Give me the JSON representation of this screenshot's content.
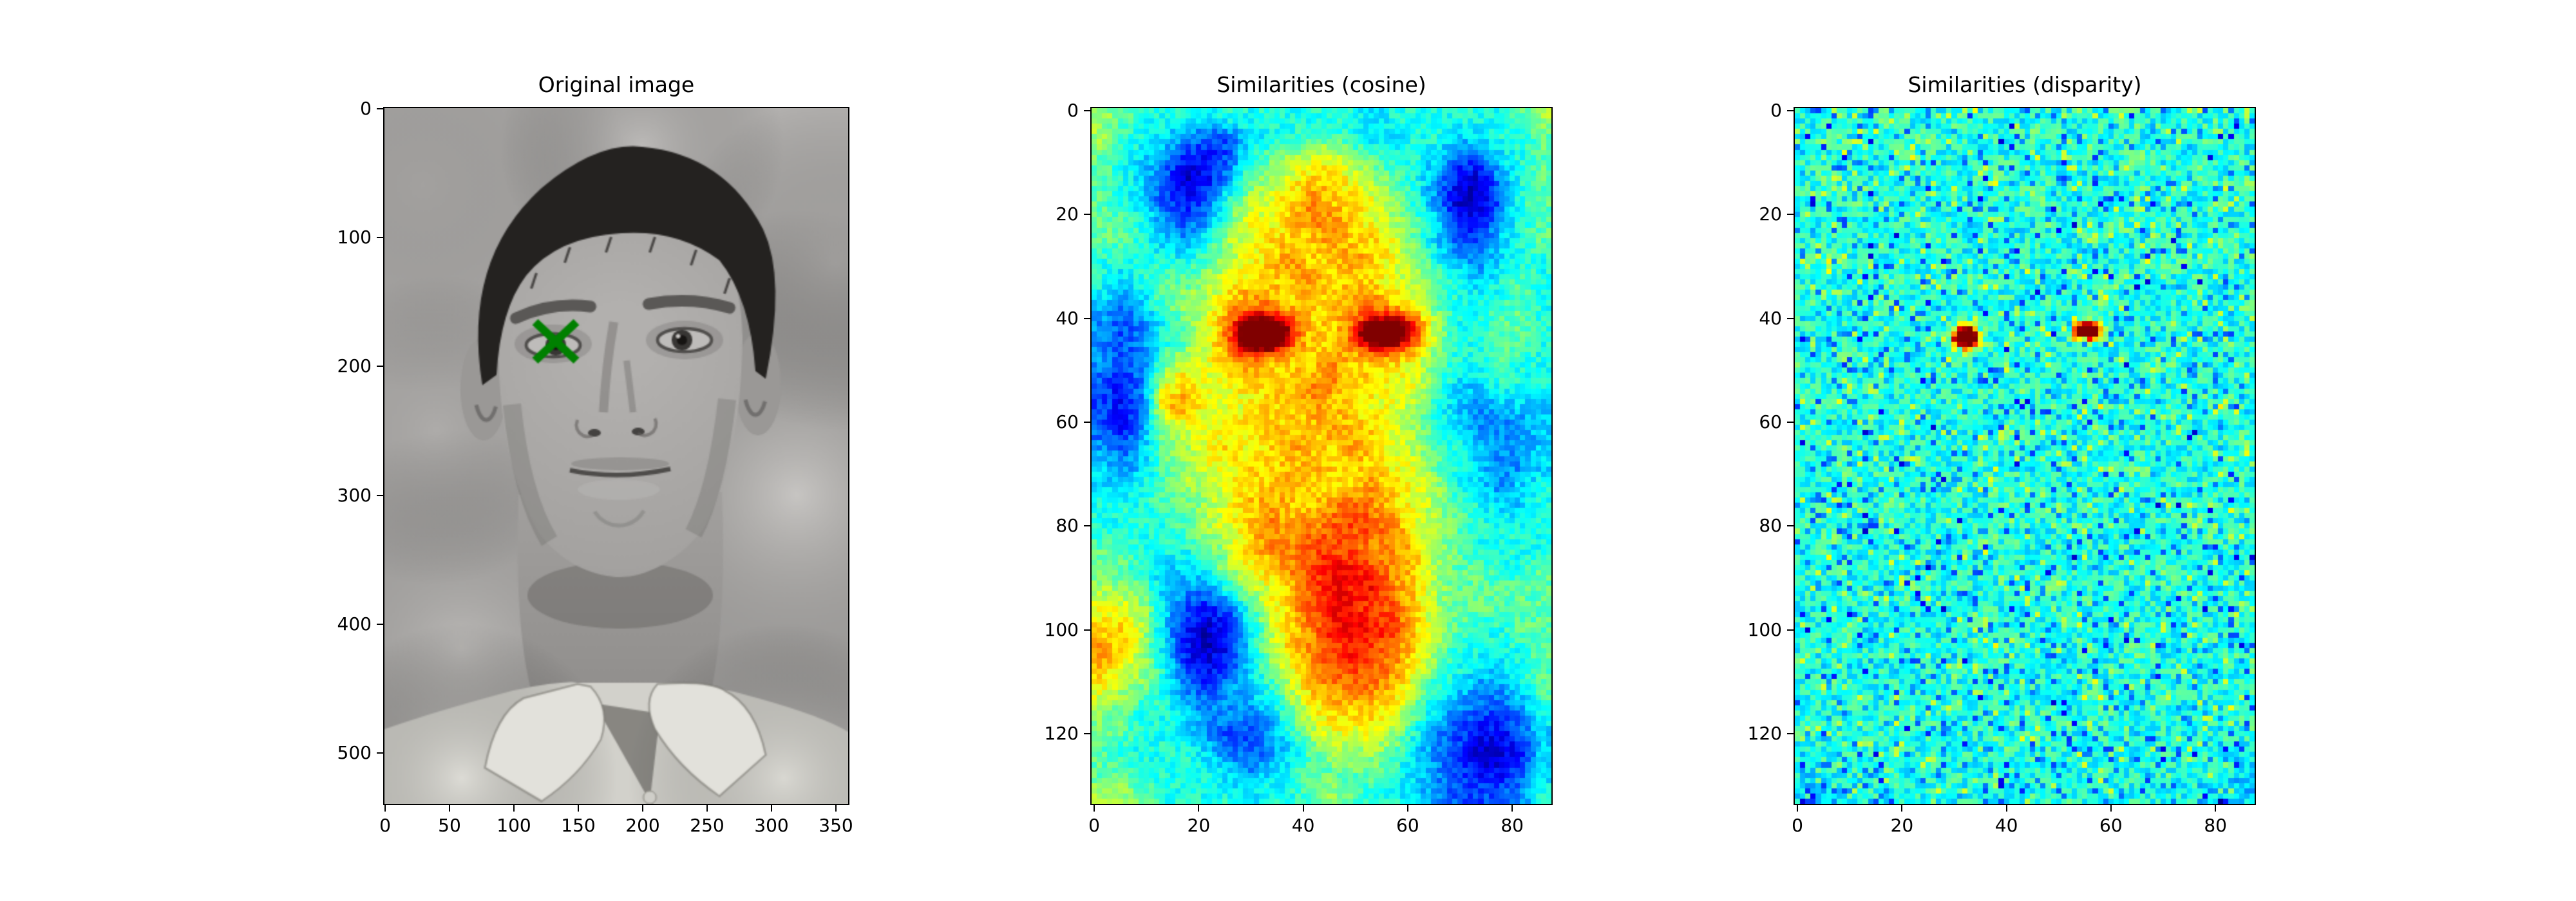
{
  "figure_background": "#ffffff",
  "chart_data": [
    {
      "id": "original",
      "type": "image",
      "title": "Original image",
      "x_ticks": [
        0,
        50,
        100,
        150,
        200,
        250,
        300,
        350
      ],
      "y_ticks": [
        0,
        100,
        200,
        300,
        400,
        500
      ],
      "x_range": [
        -0.5,
        359.5
      ],
      "y_range": [
        -0.5,
        539.5
      ],
      "image": {
        "cols": 360,
        "rows": 540,
        "description": "grayscale frontal portrait of a man with short dark hair wearing a light open-collared shirt on a light gray mottled background"
      },
      "marker": {
        "shape": "x",
        "x": 133,
        "y": 181,
        "color": "#008000",
        "half_width": 16,
        "half_height": 15,
        "line_width": 6.5
      },
      "palette": {
        "background": "#b4b2b0",
        "skin": "#a6a4a2",
        "hair": "#242220",
        "shirt": "#d2d1cb",
        "shirt_light": "#e2e1db"
      }
    },
    {
      "id": "cosine",
      "type": "heatmap",
      "title": "Similarities (cosine)",
      "colormap": "jet",
      "x_ticks": [
        0,
        20,
        40,
        60,
        80
      ],
      "y_ticks": [
        0,
        20,
        40,
        60,
        80,
        100,
        120
      ],
      "x_range": [
        -0.5,
        87.5
      ],
      "y_range": [
        -0.5,
        133.5
      ],
      "data_cols": 88,
      "data_rows": 134,
      "grid_cols": 22,
      "grid_rows": 34,
      "value_scale": 15,
      "noise_amp": 0.055,
      "seed": 3.1,
      "hotspots": [
        {
          "x": 32.5,
          "y": 43.2,
          "sx": 3.0,
          "sy": 1.8,
          "amp": 0.28
        },
        {
          "x": 55.2,
          "y": 42.8,
          "sx": 3.0,
          "sy": 1.6,
          "amp": 0.24
        }
      ],
      "grid": [
        "8766656666666566666678",
        "8665433566776556655667",
        "7654223678998766533567",
        "7653124789aa9876421467",
        "765323689abaa986411367",
        "776434799abba987522467",
        "77654689aaabaa97533567",
        "66666789abaaba98654566",
        "6567789aaabaaa98765676",
        "545788abbaaabba9766676",
        "434679beecaabdec866776",
        "434679bedbaabddb866776",
        "434799abaaabaaa9766766",
        "3249a99aaabbaa99755666",
        "324ab999aabaa998654555",
        "3248999aaaabaa98654445",
        "435789a9abaaba98765445",
        "5457899aaabaaa99765445",
        "5567889aabaaaba9865456",
        "6667789abaabcba9876556",
        "6666789abbbcccb9876666",
        "7766678abbcccbba876666",
        "77655689abcddcba877667",
        "887544689acdddba877777",
        "998532369acddcca877777",
        "aa8521258abdddca876677",
        "ba8521258abcdcba866667",
        "a986323579bcccb9765567",
        "9876434568abbba8654457",
        "87665444579aaa97543346",
        "7766543346899986432235",
        "7666654345788875431125",
        "7766665456777765432235",
        "8876666566787665433346"
      ]
    },
    {
      "id": "disparity",
      "type": "heatmap",
      "title": "Similarities (disparity)",
      "colormap": "jet",
      "x_ticks": [
        0,
        20,
        40,
        60,
        80
      ],
      "y_ticks": [
        0,
        20,
        40,
        60,
        80,
        100,
        120
      ],
      "x_range": [
        -0.5,
        87.5
      ],
      "y_range": [
        -0.5,
        133.5
      ],
      "data_cols": 88,
      "data_rows": 134,
      "grid_cols": 22,
      "grid_rows": 34,
      "value_scale": 15,
      "noise_amp": 0.085,
      "seed": 7.7,
      "speckle": {
        "blue_p": 0.13,
        "blue_amp": 0.14,
        "deep_p": 0.025,
        "deep_amp": 0.1,
        "green_p": 0.1,
        "green_amp": 0.11
      },
      "hotspots": [
        {
          "x": 32.3,
          "y": 43.6,
          "sx": 1.6,
          "sy": 1.5,
          "amp": 0.58
        },
        {
          "x": 55.5,
          "y": 42.3,
          "sx": 1.7,
          "sy": 1.1,
          "amp": 0.52
        }
      ],
      "grid": [
        "6666766676666667666666",
        "6676666666676666666766",
        "6666676666666666766666",
        "6766666667666666666667",
        "6666666666676666666666",
        "6667666666666667666666",
        "6666667666666666666676",
        "6766666666766666676666",
        "6666666676666666666666",
        "6666766666666676666667",
        "6666666666666666666666",
        "6676666666676666666666",
        "6666666766666666676666",
        "6666666666666666666666",
        "6766666666666676666676",
        "6666676666666666666666",
        "6666666666766666666667",
        "6676666666666666766666",
        "6666666667666666666666",
        "6666766666666666666676",
        "6666666666666766666666",
        "6766666676666666666666",
        "6666666666666666676666",
        "6666676666667666666666",
        "6666666666666666666667",
        "6676666666666666666666",
        "6666666667666666766666",
        "6666666666666666666666",
        "6766666666666676666666",
        "6666676666666666666676",
        "6666666666676666666666",
        "6666666666666666666666",
        "5666666666666666666665",
        "5556666666666666666555"
      ]
    }
  ]
}
